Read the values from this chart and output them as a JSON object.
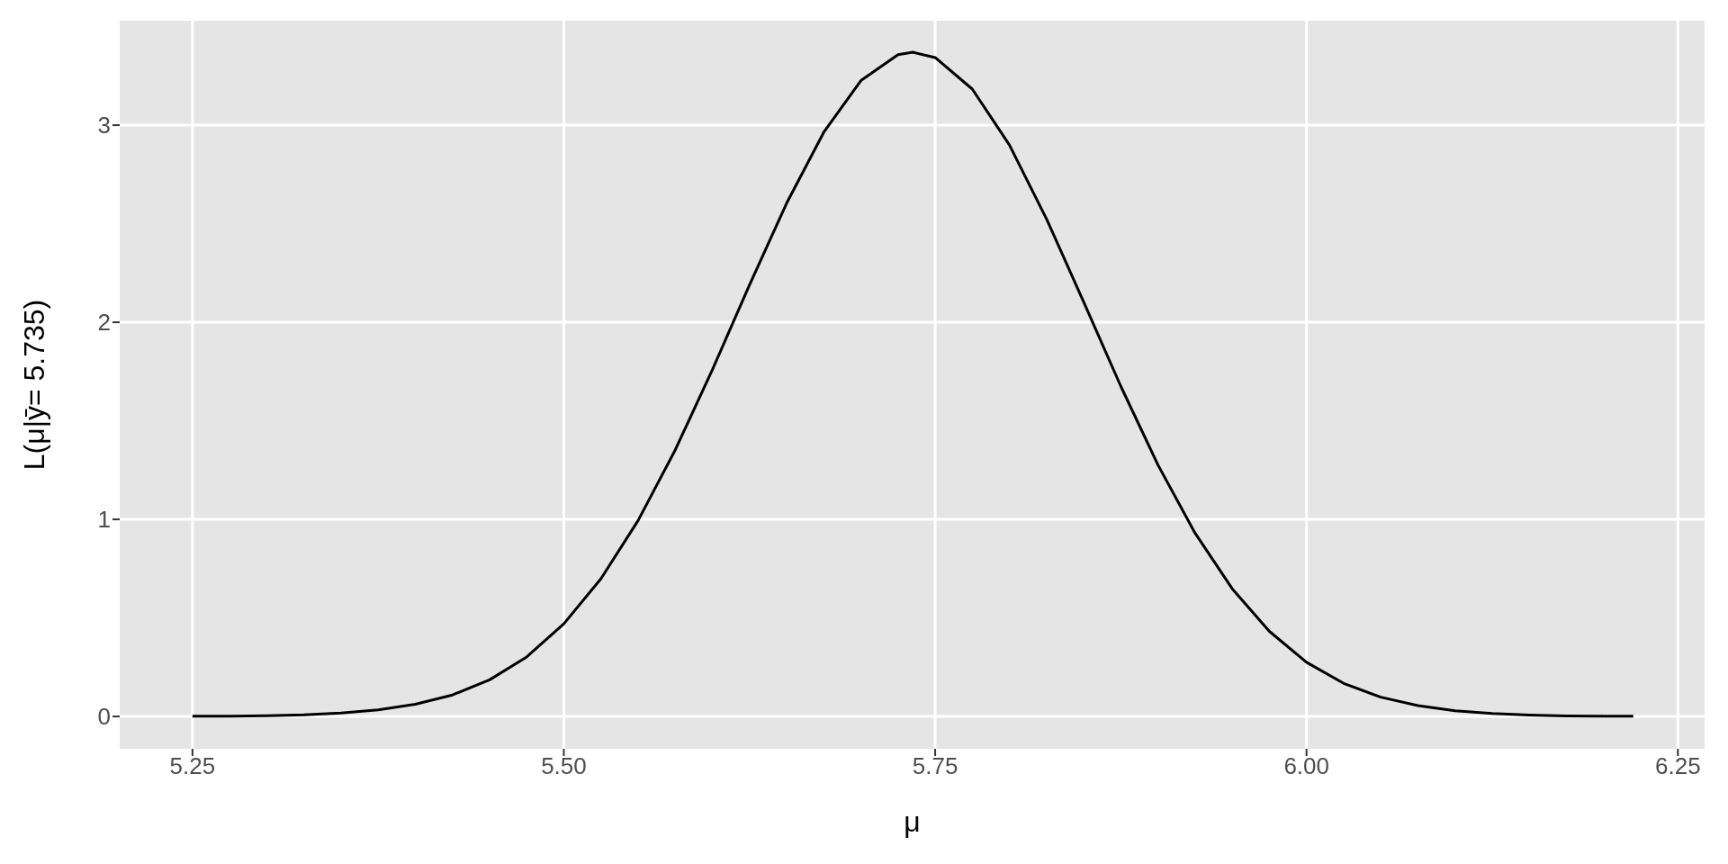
{
  "chart_data": {
    "type": "line",
    "xlabel": "μ",
    "ylabel": "L(μ|ȳ= 5.735)",
    "x": [
      5.25,
      5.275,
      5.3,
      5.325,
      5.35,
      5.375,
      5.4,
      5.425,
      5.45,
      5.475,
      5.5,
      5.525,
      5.55,
      5.575,
      5.6,
      5.625,
      5.65,
      5.675,
      5.7,
      5.725,
      5.735,
      5.75,
      5.775,
      5.8,
      5.825,
      5.85,
      5.875,
      5.9,
      5.925,
      5.95,
      5.975,
      6.0,
      6.025,
      6.05,
      6.075,
      6.1,
      6.125,
      6.15,
      6.175,
      6.2,
      6.22
    ],
    "series": [
      {
        "color": "#000000",
        "values": [
          0.001,
          0.002,
          0.004,
          0.008,
          0.017,
          0.033,
          0.062,
          0.109,
          0.186,
          0.302,
          0.47,
          0.699,
          0.994,
          1.352,
          1.759,
          2.189,
          2.604,
          2.964,
          3.226,
          3.358,
          3.37,
          3.343,
          3.183,
          2.899,
          2.524,
          2.103,
          1.675,
          1.276,
          0.93,
          0.648,
          0.432,
          0.275,
          0.168,
          0.098,
          0.055,
          0.029,
          0.015,
          0.007,
          0.003,
          0.002,
          0.001
        ]
      }
    ],
    "xlim": [
      5.201,
      6.268
    ],
    "ylim": [
      -0.164,
      3.53
    ],
    "xticks": [
      5.25,
      {
        "value": 5.5,
        "label": "5.50"
      },
      5.75,
      {
        "value": 6.0,
        "label": "6.00"
      },
      6.25
    ],
    "yticks": [
      0,
      1,
      2,
      3
    ],
    "grid": true,
    "legend": false,
    "marker": "none",
    "line_style": "solid"
  }
}
